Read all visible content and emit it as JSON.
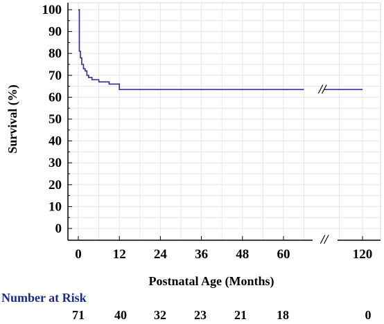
{
  "chart_data": {
    "type": "line",
    "title": "",
    "xlabel": "Postnatal Age (Months)",
    "ylabel": "Survival (%)",
    "xlim": [
      -1,
      122
    ],
    "ylim": [
      0,
      102
    ],
    "x_ticks": [
      "0",
      "12",
      "24",
      "36",
      "48",
      "60",
      "120"
    ],
    "y_ticks": [
      "100",
      "90",
      "80",
      "70",
      "60",
      "50",
      "40",
      "30",
      "20",
      "10",
      "0"
    ],
    "axis_break_symbol": "//",
    "grid": true,
    "series": [
      {
        "color": "#2b2f8f",
        "step": true,
        "x": [
          0,
          0.3,
          0.6,
          1,
          1.5,
          2,
          2.5,
          3,
          4,
          6,
          9,
          12,
          66
        ],
        "y": [
          100,
          81,
          78,
          75,
          73,
          72,
          70,
          69,
          68,
          67,
          66,
          63.5,
          63.5
        ]
      },
      {
        "color": "#2b2f8f",
        "step": false,
        "x": [
          110,
          120
        ],
        "y": [
          63.5,
          63.5
        ]
      }
    ],
    "number_at_risk": {
      "label": "Number at Risk",
      "values": [
        "71",
        "40",
        "32",
        "23",
        "21",
        "18",
        "0"
      ]
    }
  }
}
